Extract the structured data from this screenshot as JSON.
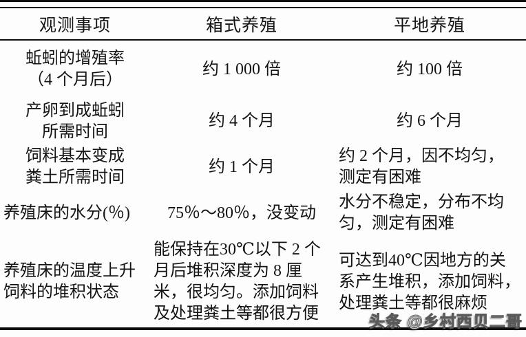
{
  "table": {
    "headers": {
      "item": "观测事项",
      "box": "箱式养殖",
      "flat": "平地养殖"
    },
    "rows": [
      {
        "item": "蚯蚓的增殖率\n（4 个月后）",
        "box": "约 1 000 倍",
        "flat": "约 100 倍"
      },
      {
        "item": "产卵到成蚯蚓\n所需时间",
        "box": "约 4 个月",
        "flat": "约 6 个月"
      },
      {
        "item": "饲料基本变成\n粪土所需时间",
        "box": "约 1 个月",
        "flat": "约 2 个月，因不均匀，\n测定有困难"
      },
      {
        "item": "养殖床的水分(％)",
        "box": "75％～80％，没变动",
        "flat": "水分不稳定，分布不均\n匀，测定有困难"
      },
      {
        "item": "养殖床的温度上升\n饲料的堆积状态",
        "box": "能保持在30℃以下 2 个\n月后堆积深度为 8 厘\n米，很均匀。添加饲料\n及处理粪土等都很方便",
        "flat": "可达到40℃因地方的关\n系产生堆积，添加饲料，\n处理粪土等都很麻烦"
      }
    ]
  },
  "watermark": "头条 @乡村西贝二哥"
}
